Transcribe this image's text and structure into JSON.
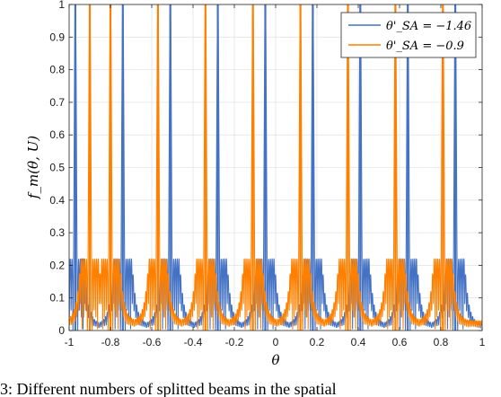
{
  "caption": "3: Different numbers of splitted beams in the spatial",
  "chart_data": {
    "type": "line",
    "xlabel": "θ",
    "ylabel": "f_m(θ, U)",
    "xlim": [
      -1,
      1
    ],
    "ylim": [
      0,
      1
    ],
    "xticks": [
      "-1",
      "-0.8",
      "-0.6",
      "-0.4",
      "-0.2",
      "0",
      "0.2",
      "0.4",
      "0.6",
      "0.8",
      "1"
    ],
    "yticks": [
      "0",
      "0.1",
      "0.2",
      "0.3",
      "0.4",
      "0.5",
      "0.6",
      "0.7",
      "0.8",
      "0.9",
      "1"
    ],
    "grid": true,
    "legend_position": "top-right",
    "series": [
      {
        "name": "θ'_SA = −1.46",
        "color": "#4472C4",
        "peaks_x": [
          -0.97,
          -0.74,
          -0.51,
          -0.28,
          -0.05,
          0.18,
          0.41,
          0.64,
          0.87
        ],
        "sidelobe_peak": 0.22,
        "floor": 0.02
      },
      {
        "name": "θ'_SA = −0.9",
        "color": "#FF8000",
        "peaks_x": [
          -0.9,
          -0.8,
          -0.57,
          -0.34,
          -0.11,
          0.12,
          0.35,
          0.58,
          0.81
        ],
        "sidelobe_peak": 0.22,
        "floor": 0.03
      }
    ]
  }
}
